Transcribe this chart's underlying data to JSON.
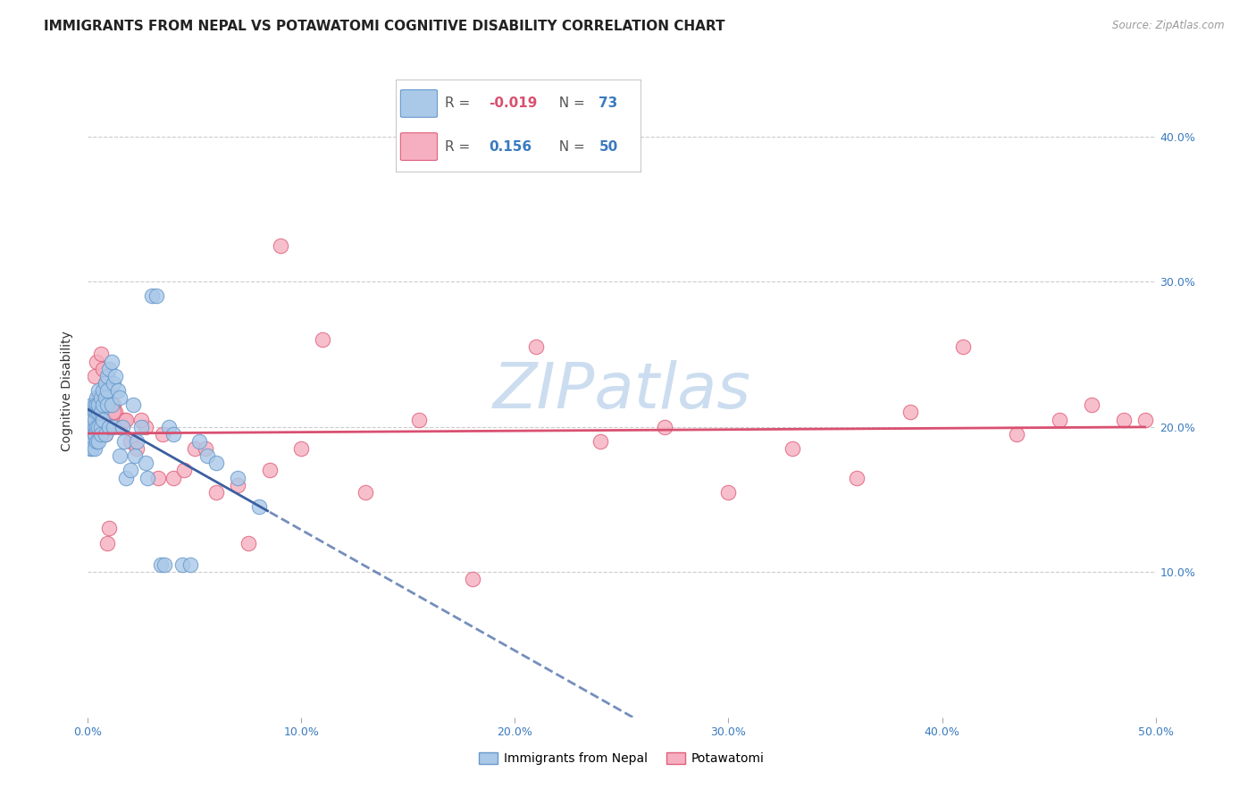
{
  "title": "IMMIGRANTS FROM NEPAL VS POTAWATOMI COGNITIVE DISABILITY CORRELATION CHART",
  "source": "Source: ZipAtlas.com",
  "ylabel": "Cognitive Disability",
  "xlim": [
    0.0,
    0.5
  ],
  "ylim": [
    0.0,
    0.45
  ],
  "xticks": [
    0.0,
    0.1,
    0.2,
    0.3,
    0.4,
    0.5
  ],
  "xtick_labels": [
    "0.0%",
    "10.0%",
    "20.0%",
    "30.0%",
    "40.0%",
    "50.0%"
  ],
  "yticks": [
    0.1,
    0.2,
    0.3,
    0.4
  ],
  "ytick_labels": [
    "10.0%",
    "20.0%",
    "30.0%",
    "40.0%"
  ],
  "watermark": "ZIPatlas",
  "series1_label": "Immigrants from Nepal",
  "series2_label": "Potawatomi",
  "series1_color": "#aac9e8",
  "series2_color": "#f5afc0",
  "series1_edge_color": "#6699cc",
  "series2_edge_color": "#e0607a",
  "series1_R": "-0.019",
  "series1_N": "73",
  "series2_R": "0.156",
  "series2_N": "50",
  "series1_line_color": "#3b5fa0",
  "series2_line_color": "#d95070",
  "background_color": "#ffffff",
  "grid_color": "#cccccc",
  "title_fontsize": 11,
  "axis_label_fontsize": 10,
  "tick_fontsize": 9,
  "watermark_color": "#ccddf0",
  "watermark_fontsize": 52,
  "nepal_x": [
    0.001,
    0.001,
    0.001,
    0.001,
    0.002,
    0.002,
    0.002,
    0.002,
    0.002,
    0.002,
    0.003,
    0.003,
    0.003,
    0.003,
    0.003,
    0.003,
    0.003,
    0.004,
    0.004,
    0.004,
    0.004,
    0.004,
    0.005,
    0.005,
    0.005,
    0.005,
    0.005,
    0.006,
    0.006,
    0.006,
    0.006,
    0.007,
    0.007,
    0.007,
    0.008,
    0.008,
    0.008,
    0.009,
    0.009,
    0.009,
    0.01,
    0.01,
    0.011,
    0.011,
    0.012,
    0.012,
    0.013,
    0.014,
    0.015,
    0.015,
    0.016,
    0.017,
    0.018,
    0.02,
    0.021,
    0.022,
    0.023,
    0.025,
    0.027,
    0.028,
    0.03,
    0.032,
    0.034,
    0.036,
    0.038,
    0.04,
    0.044,
    0.048,
    0.052,
    0.056,
    0.06,
    0.07,
    0.08
  ],
  "nepal_y": [
    0.19,
    0.2,
    0.21,
    0.185,
    0.195,
    0.205,
    0.215,
    0.19,
    0.2,
    0.185,
    0.2,
    0.21,
    0.195,
    0.215,
    0.185,
    0.195,
    0.205,
    0.22,
    0.21,
    0.2,
    0.19,
    0.215,
    0.225,
    0.21,
    0.2,
    0.19,
    0.215,
    0.22,
    0.21,
    0.2,
    0.195,
    0.225,
    0.215,
    0.205,
    0.23,
    0.22,
    0.195,
    0.235,
    0.215,
    0.225,
    0.24,
    0.2,
    0.245,
    0.215,
    0.23,
    0.2,
    0.235,
    0.225,
    0.22,
    0.18,
    0.2,
    0.19,
    0.165,
    0.17,
    0.215,
    0.18,
    0.19,
    0.2,
    0.175,
    0.165,
    0.29,
    0.29,
    0.105,
    0.105,
    0.2,
    0.195,
    0.105,
    0.105,
    0.19,
    0.18,
    0.175,
    0.165,
    0.145
  ],
  "potawatomi_x": [
    0.002,
    0.003,
    0.004,
    0.005,
    0.006,
    0.007,
    0.008,
    0.009,
    0.01,
    0.011,
    0.012,
    0.013,
    0.015,
    0.017,
    0.02,
    0.023,
    0.027,
    0.033,
    0.04,
    0.05,
    0.06,
    0.075,
    0.09,
    0.11,
    0.13,
    0.155,
    0.18,
    0.21,
    0.24,
    0.27,
    0.3,
    0.33,
    0.36,
    0.385,
    0.41,
    0.435,
    0.455,
    0.47,
    0.485,
    0.495,
    0.008,
    0.012,
    0.018,
    0.025,
    0.035,
    0.045,
    0.055,
    0.07,
    0.085,
    0.1
  ],
  "potawatomi_y": [
    0.195,
    0.235,
    0.245,
    0.22,
    0.25,
    0.24,
    0.23,
    0.12,
    0.13,
    0.21,
    0.215,
    0.21,
    0.2,
    0.205,
    0.19,
    0.185,
    0.2,
    0.165,
    0.165,
    0.185,
    0.155,
    0.12,
    0.325,
    0.26,
    0.155,
    0.205,
    0.095,
    0.255,
    0.19,
    0.2,
    0.155,
    0.185,
    0.165,
    0.21,
    0.255,
    0.195,
    0.205,
    0.215,
    0.205,
    0.205,
    0.195,
    0.21,
    0.205,
    0.205,
    0.195,
    0.17,
    0.185,
    0.16,
    0.17,
    0.185
  ]
}
